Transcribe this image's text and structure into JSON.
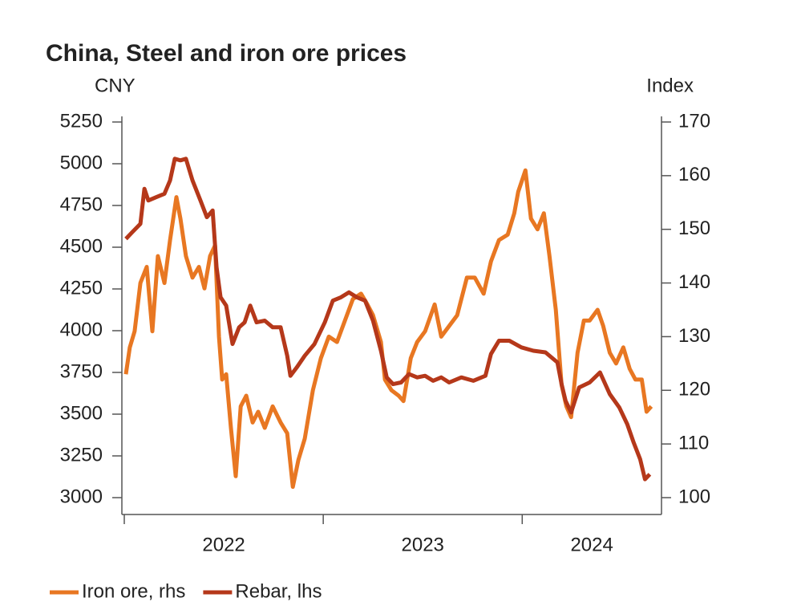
{
  "chart_data": {
    "type": "line",
    "title": "China, Steel and iron ore prices",
    "y_label": "CNY",
    "y2_label": "Index",
    "xlim": [
      2022,
      2024.7
    ],
    "xticks": [
      2022,
      2023,
      2024
    ],
    "ylim": [
      3000,
      5250
    ],
    "yticks": [
      3000,
      3250,
      3500,
      3750,
      4000,
      4250,
      4500,
      4750,
      5000,
      5250
    ],
    "y2lim": [
      100,
      170
    ],
    "y2ticks": [
      100,
      110,
      120,
      130,
      140,
      150,
      160,
      170
    ],
    "legend": "bottom-left",
    "series": [
      {
        "name": "Iron ore, rhs",
        "color": "#e87722",
        "axis": "y2",
        "x": [
          2022.008,
          2022.028,
          2022.052,
          2022.081,
          2022.113,
          2022.141,
          2022.169,
          2022.202,
          2022.23,
          2022.262,
          2022.282,
          2022.31,
          2022.343,
          2022.375,
          2022.403,
          2022.431,
          2022.456,
          2022.476,
          2022.492,
          2022.512,
          2022.536,
          2022.56,
          2022.585,
          2022.613,
          2022.645,
          2022.673,
          2022.706,
          2022.746,
          2022.786,
          2022.819,
          2022.847,
          2022.875,
          2022.907,
          2022.948,
          2022.988,
          2023.028,
          2023.069,
          2023.109,
          2023.149,
          2023.19,
          2023.222,
          2023.25,
          2023.29,
          2023.31,
          2023.343,
          2023.379,
          2023.403,
          2023.44,
          2023.472,
          2023.512,
          2023.56,
          2023.593,
          2023.633,
          2023.673,
          2023.722,
          2023.762,
          2023.806,
          2023.843,
          2023.883,
          2023.927,
          2023.96,
          2023.98,
          2024.016,
          2024.044,
          2024.077,
          2024.109,
          2024.137,
          2024.169,
          2024.198,
          2024.222,
          2024.246,
          2024.278,
          2024.31,
          2024.339,
          2024.379,
          2024.407,
          2024.44,
          2024.472,
          2024.508,
          2024.54,
          2024.569,
          2024.601,
          2024.625,
          2024.649
        ],
        "values": [
          123,
          128,
          131,
          140,
          143,
          131,
          145,
          140,
          148,
          156,
          152,
          145,
          141,
          143,
          139,
          145,
          147,
          130,
          122,
          123,
          113,
          104,
          117,
          119,
          114,
          116,
          113,
          117,
          114,
          112,
          102,
          107,
          111,
          120,
          126,
          130,
          129,
          133,
          137,
          138,
          136,
          134,
          129,
          122,
          120,
          119,
          118,
          126,
          129,
          131,
          136,
          130,
          132,
          134,
          141,
          141,
          138,
          144,
          148,
          149,
          153,
          157,
          161,
          152,
          150,
          153,
          145,
          135,
          121,
          117,
          115,
          127,
          133,
          133,
          135,
          132,
          127,
          125,
          128,
          124,
          122,
          122,
          116,
          117
        ]
      },
      {
        "name": "Rebar, lhs",
        "color": "#b5381a",
        "axis": "y",
        "x": [
          2022.008,
          2022.04,
          2022.081,
          2022.101,
          2022.121,
          2022.161,
          2022.202,
          2022.23,
          2022.254,
          2022.282,
          2022.31,
          2022.343,
          2022.383,
          2022.415,
          2022.444,
          2022.464,
          2022.484,
          2022.512,
          2022.544,
          2022.577,
          2022.605,
          2022.633,
          2022.665,
          2022.706,
          2022.746,
          2022.786,
          2022.819,
          2022.835,
          2022.867,
          2022.907,
          2022.956,
          2023.008,
          2023.048,
          2023.089,
          2023.129,
          2023.169,
          2023.21,
          2023.25,
          2023.29,
          2023.319,
          2023.351,
          2023.391,
          2023.431,
          2023.472,
          2023.512,
          2023.552,
          2023.593,
          2023.633,
          2023.694,
          2023.754,
          2023.815,
          2023.843,
          2023.883,
          2023.935,
          2023.996,
          2024.056,
          2024.117,
          2024.177,
          2024.198,
          2024.218,
          2024.246,
          2024.286,
          2024.339,
          2024.391,
          2024.44,
          2024.488,
          2024.528,
          2024.56,
          2024.593,
          2024.617,
          2024.641
        ],
        "values": [
          4550,
          4590,
          4640,
          4850,
          4780,
          4800,
          4820,
          4900,
          5030,
          5020,
          5030,
          4900,
          4780,
          4680,
          4720,
          4380,
          4200,
          4150,
          3920,
          4020,
          4050,
          4150,
          4050,
          4060,
          4020,
          4020,
          3850,
          3730,
          3780,
          3850,
          3920,
          4050,
          4180,
          4200,
          4230,
          4200,
          4180,
          4060,
          3880,
          3720,
          3680,
          3690,
          3740,
          3720,
          3730,
          3700,
          3720,
          3690,
          3720,
          3700,
          3730,
          3860,
          3940,
          3940,
          3900,
          3880,
          3870,
          3810,
          3680,
          3580,
          3510,
          3660,
          3690,
          3750,
          3620,
          3540,
          3440,
          3330,
          3230,
          3110,
          3140
        ]
      }
    ]
  }
}
